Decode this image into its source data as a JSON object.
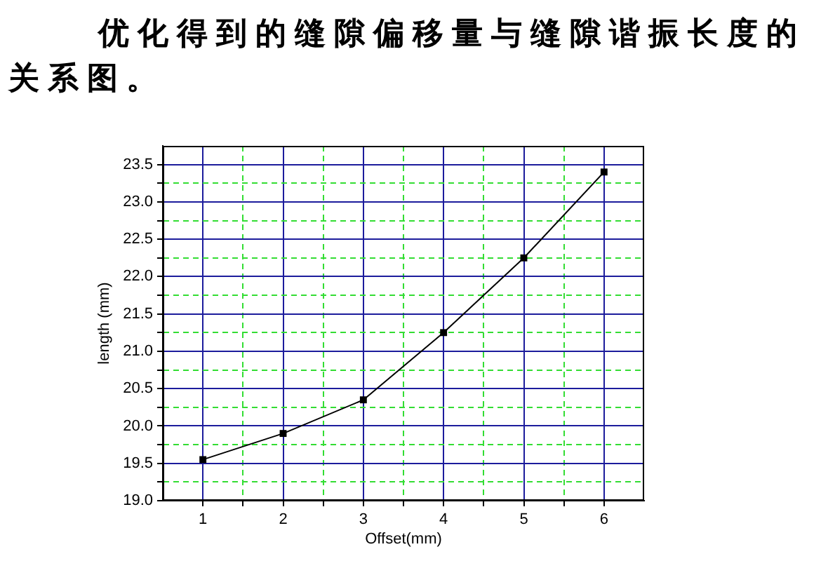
{
  "chart_data": {
    "type": "line",
    "title": "优化得到的缝隙偏移量与缝隙谐振长度的关系图。",
    "xlabel": "Offset(mm)",
    "ylabel": "length (mm)",
    "x": [
      1,
      2,
      3,
      4,
      5,
      6
    ],
    "series": [
      {
        "color": "#000000",
        "values": [
          19.55,
          19.9,
          20.35,
          21.25,
          22.25,
          23.4
        ]
      }
    ],
    "xlim": [
      0.5,
      6.5
    ],
    "xticks": [
      1,
      {
        "value": 1.5,
        "label": null
      },
      2,
      {
        "value": 2.5,
        "label": null
      },
      3,
      {
        "value": 3.5,
        "label": null
      },
      4,
      {
        "value": 4.5,
        "label": null
      },
      5,
      {
        "value": 5.5,
        "label": null
      },
      6
    ],
    "ylim": [
      19,
      23.75
    ],
    "yticks": [
      {
        "value": 19,
        "label": "19.0"
      },
      {
        "value": 19.25,
        "label": null
      },
      19.5,
      {
        "value": 19.75,
        "label": null
      },
      {
        "value": 20,
        "label": "20.0"
      },
      {
        "value": 20.25,
        "label": null
      },
      20.5,
      {
        "value": 20.75,
        "label": null
      },
      {
        "value": 21,
        "label": "21.0"
      },
      {
        "value": 21.25,
        "label": null
      },
      21.5,
      {
        "value": 21.75,
        "label": null
      },
      {
        "value": 22,
        "label": "22.0"
      },
      {
        "value": 22.25,
        "label": null
      },
      22.5,
      {
        "value": 22.75,
        "label": null
      },
      {
        "value": 23,
        "label": "23.0"
      },
      {
        "value": 23.25,
        "label": null
      },
      23.5
    ],
    "grid": true,
    "marker": "square",
    "line_style": "solid"
  }
}
